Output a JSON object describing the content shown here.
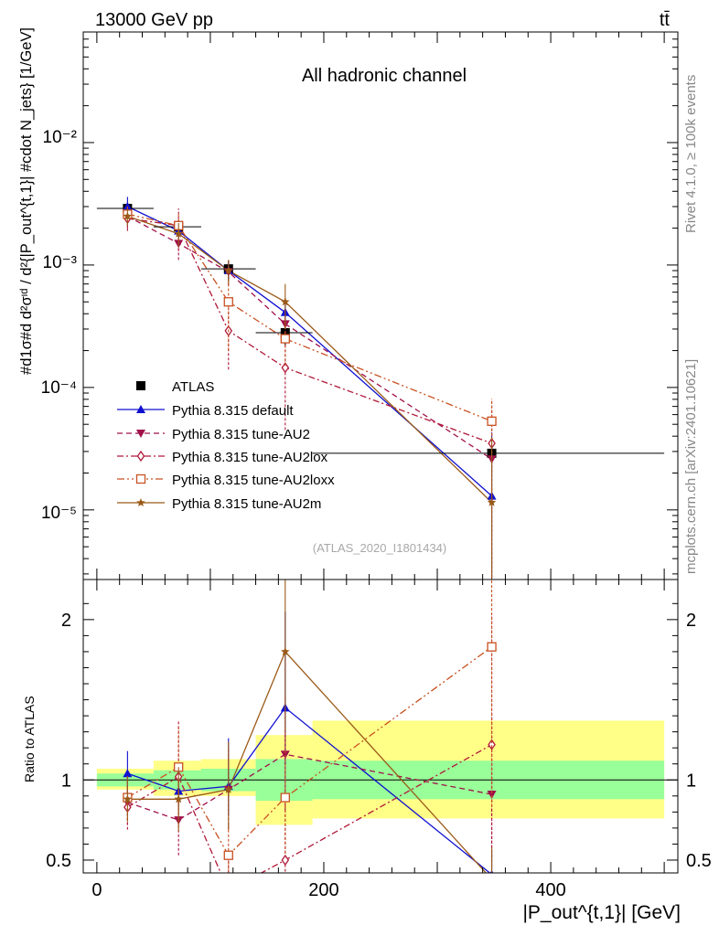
{
  "header": {
    "left": "13000 GeV pp",
    "right": "tt̄"
  },
  "side_labels": {
    "rivet": "Rivet 4.1.0, ≥ 100k events",
    "url": "mcplots.cern.ch [arXiv:2401.10621]"
  },
  "chart_data": [
    {
      "type": "line",
      "panel": "main",
      "title": "All hadronic channel",
      "watermark": "(ATLAS_2020_I1801434)",
      "ylabel": "#d1σ#d d²σᶦᵈ / d²{|P_out^{t,1}| #cdot N_jets} [1/GeV]",
      "yscale": "log",
      "ylim": [
        2.7e-06,
        0.08
      ],
      "xlim": [
        -12,
        512
      ],
      "ytick_labels": [
        "10⁻²",
        "10⁻³",
        "10⁻⁴",
        "10⁻⁵"
      ],
      "legend_position": "lower-left",
      "x": [
        27,
        72,
        116,
        166,
        348
      ],
      "series": [
        {
          "name": "ATLAS",
          "color": "#000000",
          "marker": "square",
          "line": "none",
          "values": [
            0.0029,
            0.00205,
            0.00093,
            0.00028,
            2.9e-05
          ],
          "err_lo": [
            0.00035,
            0.00028,
            0.00016,
            6e-05,
            5e-06
          ],
          "err_hi": [
            0.00035,
            0.00028,
            0.00016,
            6e-05,
            5e-06
          ],
          "xerr": [
            [
              0,
              50
            ],
            [
              50,
              92
            ],
            [
              92,
              140
            ],
            [
              140,
              190
            ],
            [
              190,
              500
            ]
          ]
        },
        {
          "name": "Pythia 8.315 default",
          "color": "#1010d0",
          "marker": "triangle-up",
          "line": "solid",
          "values": [
            0.003,
            0.0019,
            0.0009,
            0.00041,
            1.3e-05
          ],
          "err_lo": [
            0.0006,
            0.0004,
            0.00015,
            9e-05,
            1.25e-05
          ],
          "err_hi": [
            0.0006,
            0.0004,
            0.00015,
            9e-05,
            3e-05
          ]
        },
        {
          "name": "Pythia 8.315 tune-AU2",
          "color": "#a0104a",
          "marker": "triangle-down",
          "line": "dashed",
          "values": [
            0.0025,
            0.0015,
            0.00088,
            0.00033,
            2.6e-05
          ],
          "err_lo": [
            0.0005,
            0.0004,
            0.0002,
            0.0001,
            2.5e-05
          ],
          "err_hi": [
            0.0005,
            0.0004,
            0.0002,
            0.0001,
            4e-05
          ]
        },
        {
          "name": "Pythia 8.315 tune-AU2lox",
          "color": "#b01838",
          "marker": "diamond",
          "line": "dashdot",
          "values": [
            0.0024,
            0.0021,
            0.00029,
            0.000145,
            3.5e-05
          ],
          "err_lo": [
            0.0005,
            0.0008,
            0.00015,
            0.0001,
            3.4e-05
          ],
          "err_hi": [
            0.0005,
            0.0008,
            0.00015,
            0.0001,
            4.5e-05
          ]
        },
        {
          "name": "Pythia 8.315 tune-AU2loxx",
          "color": "#c85020",
          "marker": "square-open",
          "line": "dashdotdot",
          "values": [
            0.0026,
            0.0021,
            0.0005,
            0.00025,
            5.3e-05
          ],
          "err_lo": [
            0.0004,
            0.0005,
            0.0003,
            0.0001,
            5.2e-05
          ],
          "err_hi": [
            0.0004,
            0.0005,
            0.0003,
            0.0001,
            2.8e-05
          ]
        },
        {
          "name": "Pythia 8.315 tune-AU2m",
          "color": "#9a5a18",
          "marker": "star",
          "line": "solid",
          "values": [
            0.0025,
            0.0018,
            0.0009,
            0.0005,
            1.15e-05
          ],
          "err_lo": [
            0.0004,
            0.0004,
            0.0002,
            0.0002,
            1.14e-05
          ],
          "err_hi": [
            0.0004,
            0.0004,
            0.0002,
            0.0002,
            2.8e-05
          ]
        }
      ]
    },
    {
      "type": "line",
      "panel": "ratio",
      "ylabel": "Ratio to ATLAS",
      "xlabel": "|P_out^{t,1}| [GeV]",
      "ylim": [
        0.42,
        2.25
      ],
      "xlim": [
        -12,
        512
      ],
      "yticks": [
        0.5,
        1,
        2
      ],
      "ytick_labels": [
        "0.5",
        "1",
        "2"
      ],
      "xticks": [
        0,
        200,
        400
      ],
      "xtick_labels": [
        "0",
        "200",
        "400"
      ],
      "bands": {
        "bins": [
          [
            0,
            50
          ],
          [
            50,
            92
          ],
          [
            92,
            140
          ],
          [
            140,
            190
          ],
          [
            190,
            500
          ]
        ],
        "stat_lo": [
          0.96,
          0.94,
          0.93,
          0.87,
          0.88
        ],
        "stat_hi": [
          1.04,
          1.06,
          1.07,
          1.13,
          1.12
        ],
        "total_lo": [
          0.94,
          0.9,
          0.9,
          0.72,
          0.76
        ],
        "total_hi": [
          1.07,
          1.12,
          1.13,
          1.28,
          1.37
        ]
      },
      "x": [
        27,
        72,
        116,
        166,
        348
      ],
      "series": [
        {
          "name": "Pythia 8.315 default",
          "color": "#1010d0",
          "marker": "triangle-up",
          "line": "solid",
          "values": [
            1.04,
            0.93,
            0.96,
            1.45,
            0.41
          ],
          "err_lo": [
            0.14,
            0.1,
            0.18,
            0.35,
            0.15
          ],
          "err_hi": [
            0.14,
            0.1,
            0.3,
            0.6,
            0.15
          ]
        },
        {
          "name": "Pythia 8.315 tune-AU2",
          "color": "#a0104a",
          "marker": "triangle-down",
          "line": "dashed",
          "values": [
            0.86,
            0.75,
            0.94,
            1.16,
            0.91
          ],
          "err_lo": [
            0.14,
            0.22,
            0.25,
            0.35,
            0.45
          ],
          "err_hi": [
            0.14,
            0.22,
            0.25,
            0.35,
            0.5
          ]
        },
        {
          "name": "Pythia 8.315 tune-AU2lox",
          "color": "#b01838",
          "marker": "diamond",
          "line": "dashdot",
          "values": [
            0.83,
            1.02,
            0.31,
            0.5,
            1.22
          ],
          "err_lo": [
            0.14,
            0.3,
            0.2,
            0.3,
            0.7
          ],
          "err_hi": [
            0.14,
            0.35,
            0.2,
            0.35,
            0.8
          ]
        },
        {
          "name": "Pythia 8.315 tune-AU2loxx",
          "color": "#c85020",
          "marker": "square-open",
          "line": "dashdotdot",
          "values": [
            0.89,
            1.08,
            0.53,
            0.89,
            1.83
          ],
          "err_lo": [
            0.14,
            0.25,
            0.2,
            0.35,
            1.0
          ],
          "err_hi": [
            0.14,
            0.25,
            0.2,
            0.45,
            1.0
          ]
        },
        {
          "name": "Pythia 8.315 tune-AU2m",
          "color": "#9a5a18",
          "marker": "star",
          "line": "solid",
          "values": [
            0.88,
            0.88,
            0.94,
            1.8,
            0.38
          ],
          "err_lo": [
            0.14,
            0.2,
            0.25,
            0.5,
            0.2
          ],
          "err_hi": [
            0.14,
            0.2,
            0.3,
            0.5,
            0.2
          ]
        }
      ]
    }
  ]
}
